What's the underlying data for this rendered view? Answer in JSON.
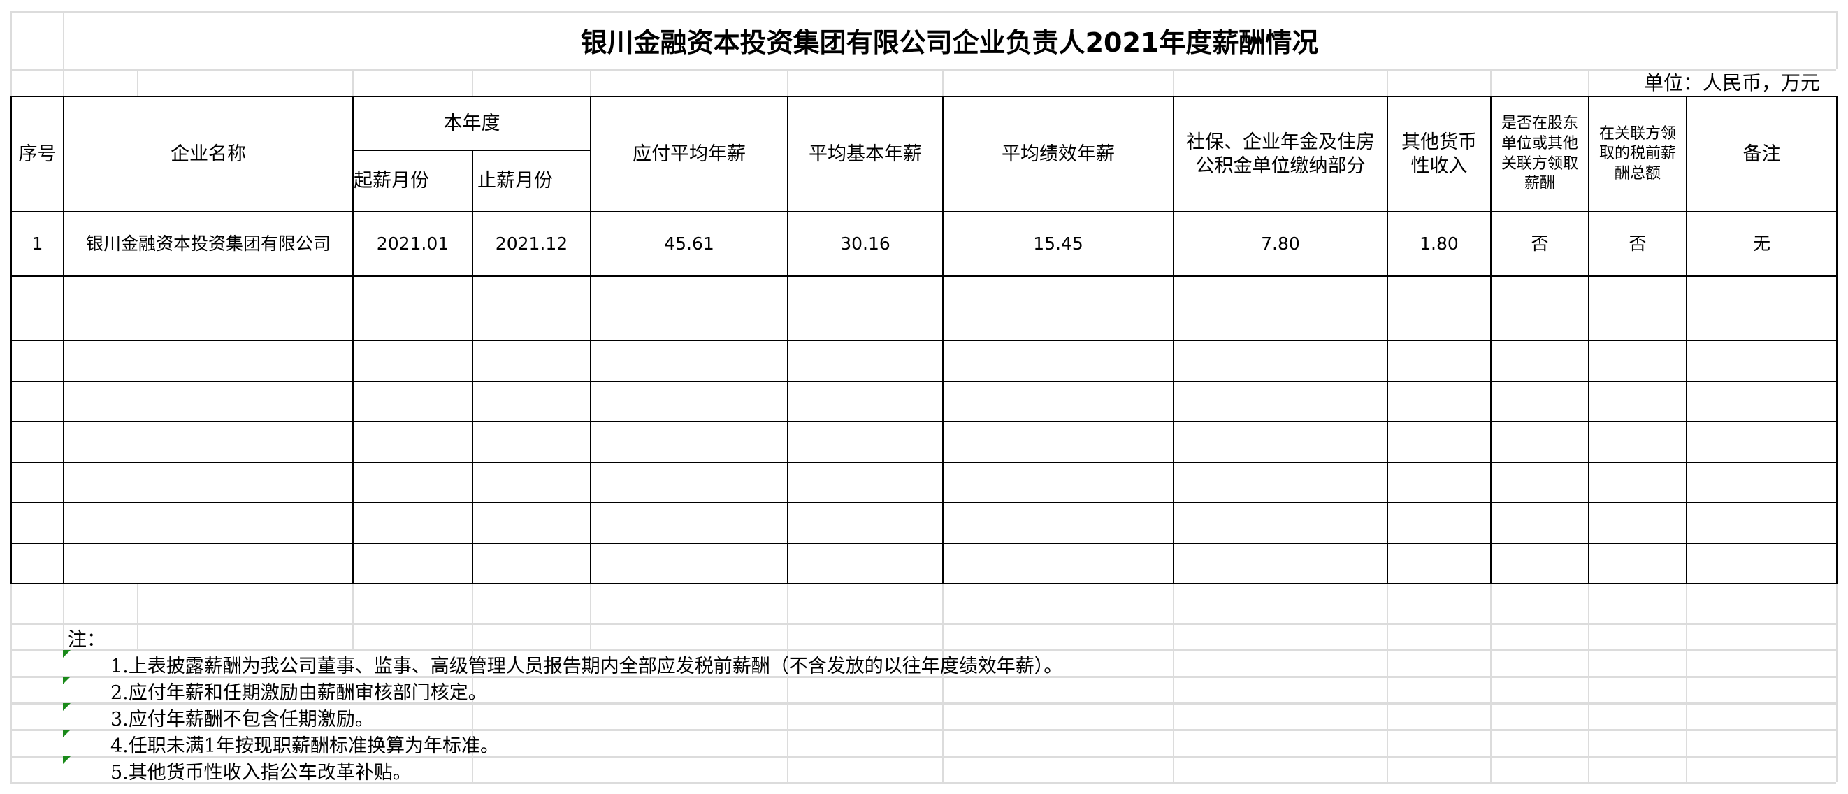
{
  "title": "银川金融资本投资集团有限公司企业负责人2021年度薪酬情况",
  "unit": "单位：人民币，万元",
  "headers": {
    "seq": "序号",
    "company": "企业名称",
    "year_group": "本年度",
    "start_month": "起薪月份",
    "end_month": "止薪月份",
    "avg_payable": "应付平均年薪",
    "avg_base": "平均基本年薪",
    "avg_performance": "平均绩效年薪",
    "social_insurance": "社保、企业年金及住房公积金单位缴纳部分",
    "other_income": "其他货币性收入",
    "shareholder_pay": "是否在股东单位或其他关联方领取薪酬",
    "related_party_total": "在关联方领取的税前薪酬总额",
    "remark": "备注"
  },
  "rows": [
    {
      "seq": "1",
      "company": "银川金融资本投资集团有限公司",
      "start_month": "2021.01",
      "end_month": "2021.12",
      "avg_payable": "45.61",
      "avg_base": "30.16",
      "avg_performance": "15.45",
      "social_insurance": "7.80",
      "other_income": "1.80",
      "shareholder_pay": "否",
      "related_party_total": "否",
      "remark": "无"
    }
  ],
  "notes": {
    "label": "注：",
    "items": [
      "1.上表披露薪酬为我公司董事、监事、高级管理人员报告期内全部应发税前薪酬（不含发放的以往年度绩效年薪）。",
      "2.应付年薪和任期激励由薪酬审核部门核定。",
      "3.应付年薪酬不包含任期激励。",
      "4.任职未满1年按现职薪酬标准换算为年标准。",
      "5.其他货币性收入指公车改革补贴。"
    ]
  }
}
